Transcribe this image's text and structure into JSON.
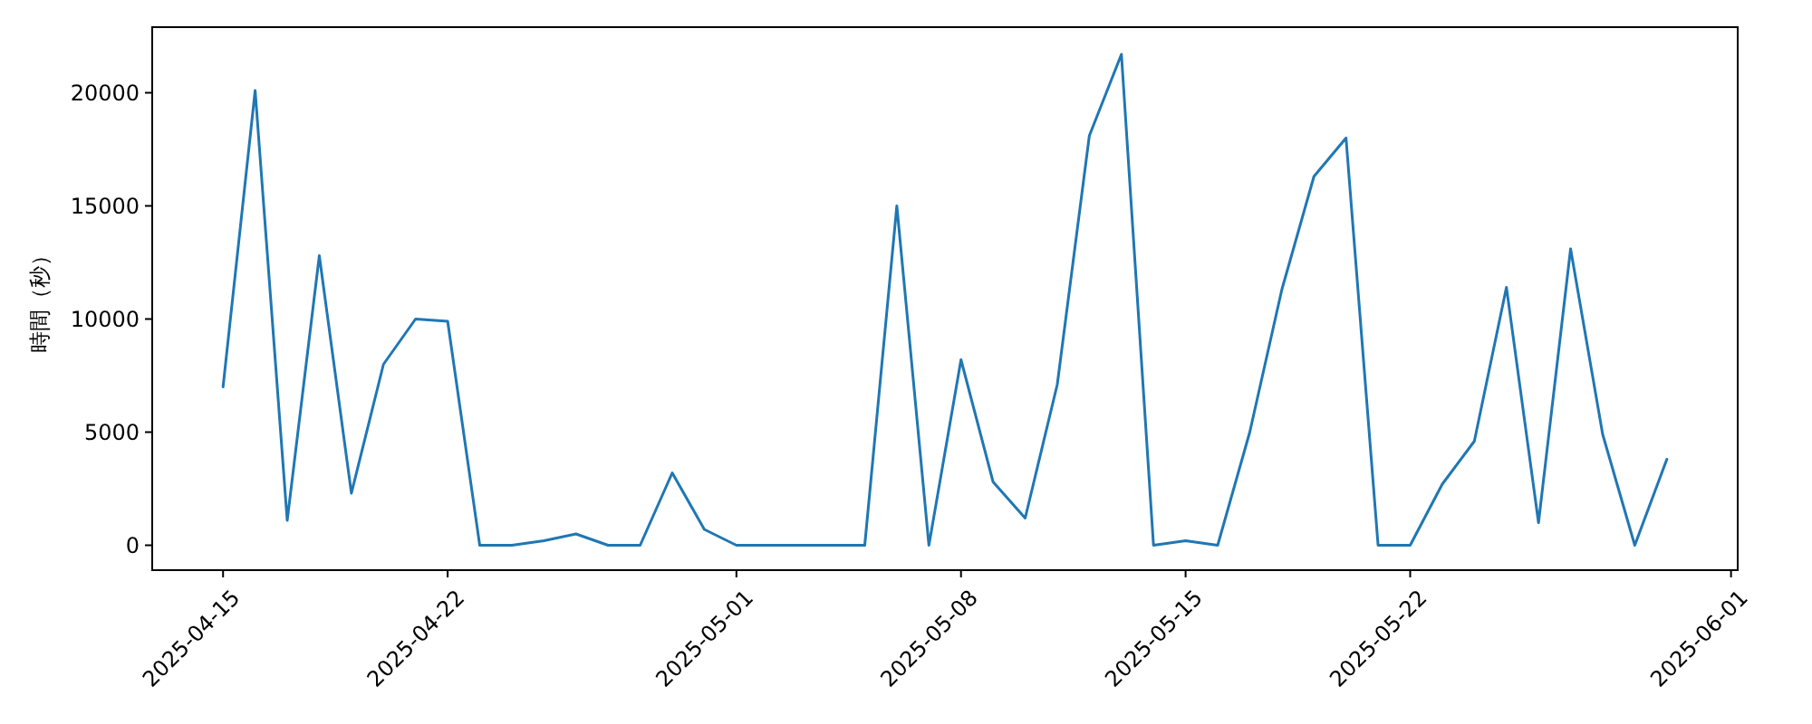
{
  "chart_data": {
    "type": "line",
    "ylabel": "時間（秒）",
    "x": [
      "2025-04-15",
      "2025-04-16",
      "2025-04-17",
      "2025-04-18",
      "2025-04-19",
      "2025-04-20",
      "2025-04-21",
      "2025-04-22",
      "2025-04-23",
      "2025-04-24",
      "2025-04-25",
      "2025-04-26",
      "2025-04-27",
      "2025-04-28",
      "2025-04-29",
      "2025-04-30",
      "2025-05-01",
      "2025-05-02",
      "2025-05-03",
      "2025-05-04",
      "2025-05-05",
      "2025-05-06",
      "2025-05-07",
      "2025-05-08",
      "2025-05-09",
      "2025-05-10",
      "2025-05-11",
      "2025-05-12",
      "2025-05-13",
      "2025-05-14",
      "2025-05-15",
      "2025-05-16",
      "2025-05-17",
      "2025-05-18",
      "2025-05-19",
      "2025-05-20",
      "2025-05-21",
      "2025-05-22",
      "2025-05-23",
      "2025-05-24",
      "2025-05-25",
      "2025-05-26",
      "2025-05-27",
      "2025-05-28",
      "2025-05-29",
      "2025-05-30"
    ],
    "series": [
      {
        "color": "#1f77b4",
        "values": [
          7000,
          20100,
          1100,
          12800,
          2300,
          8000,
          10000,
          9900,
          0,
          0,
          200,
          500,
          0,
          0,
          3200,
          700,
          0,
          0,
          0,
          0,
          0,
          15000,
          0,
          8200,
          2800,
          1200,
          7100,
          18100,
          21700,
          0,
          200,
          0,
          5000,
          11300,
          16300,
          18000,
          0,
          0,
          2700,
          4600,
          11400,
          1000,
          13100,
          4900,
          0,
          3800
        ]
      }
    ],
    "xlim": [
      "2025-04-12T19:00",
      "2025-06-01T05:00"
    ],
    "xticks": [
      "2025-04-15",
      "2025-04-22",
      "2025-05-01",
      "2025-05-08",
      "2025-05-15",
      "2025-05-22",
      "2025-06-01"
    ],
    "ylim": [
      -1100,
      22900
    ],
    "yticks": [
      0,
      5000,
      10000,
      15000,
      20000
    ],
    "marker": "none",
    "line_style": "solid"
  }
}
